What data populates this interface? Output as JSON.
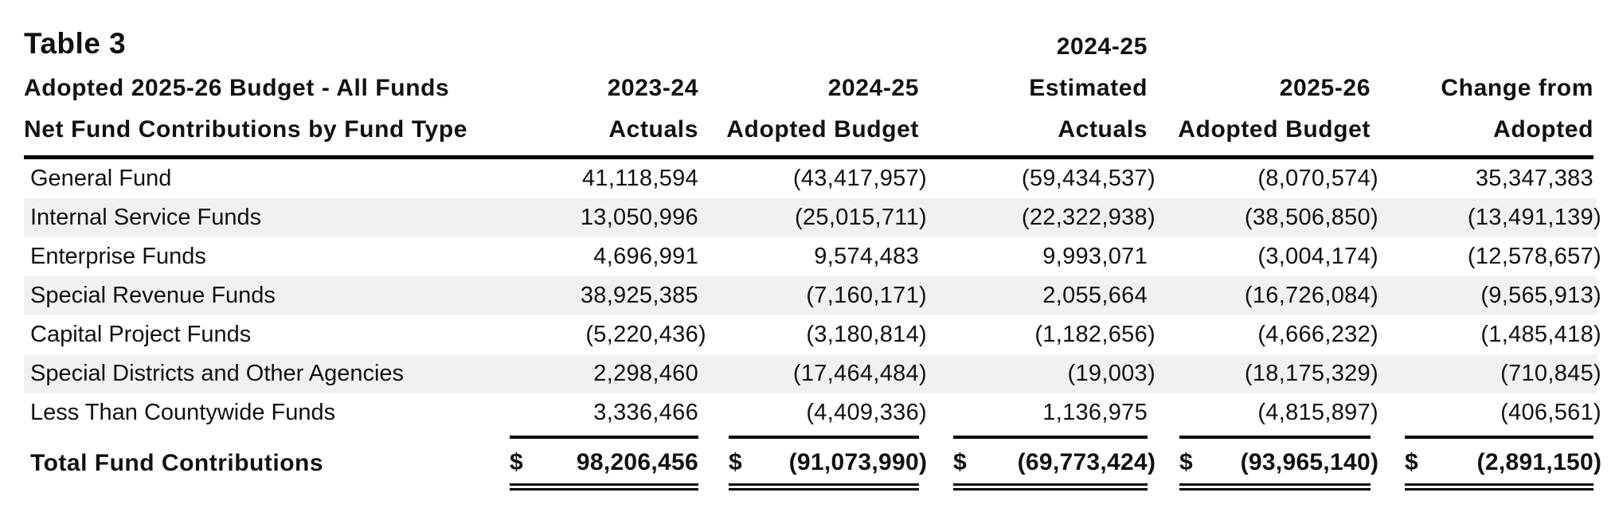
{
  "table": {
    "title": "Table 3",
    "subtitle_line1": "Adopted 2025-26 Budget - All Funds",
    "subtitle_line2": "Net Fund Contributions by Fund Type",
    "columns": [
      {
        "line1": "",
        "line2": "2023-24",
        "line3": "Actuals"
      },
      {
        "line1": "",
        "line2": "2024-25",
        "line3": "Adopted Budget"
      },
      {
        "line1": "2024-25",
        "line2": "Estimated",
        "line3": "Actuals"
      },
      {
        "line1": "",
        "line2": "2025-26",
        "line3": "Adopted Budget"
      },
      {
        "line1": "",
        "line2": "Change from",
        "line3": "Adopted"
      }
    ],
    "rows": [
      {
        "label": "General Fund",
        "values": [
          "41,118,594",
          "(43,417,957)",
          "(59,434,537)",
          "(8,070,574)",
          "35,347,383"
        ]
      },
      {
        "label": "Internal Service Funds",
        "values": [
          "13,050,996",
          "(25,015,711)",
          "(22,322,938)",
          "(38,506,850)",
          "(13,491,139)"
        ]
      },
      {
        "label": "Enterprise Funds",
        "values": [
          "4,696,991",
          "9,574,483",
          "9,993,071",
          "(3,004,174)",
          "(12,578,657)"
        ]
      },
      {
        "label": "Special Revenue Funds",
        "values": [
          "38,925,385",
          "(7,160,171)",
          "2,055,664",
          "(16,726,084)",
          "(9,565,913)"
        ]
      },
      {
        "label": "Capital Project Funds",
        "values": [
          "(5,220,436)",
          "(3,180,814)",
          "(1,182,656)",
          "(4,666,232)",
          "(1,485,418)"
        ]
      },
      {
        "label": "Special Districts and Other Agencies",
        "values": [
          "2,298,460",
          "(17,464,484)",
          "(19,003)",
          "(18,175,329)",
          "(710,845)"
        ]
      },
      {
        "label": "Less Than Countywide Funds",
        "values": [
          "3,336,466",
          "(4,409,336)",
          "1,136,975",
          "(4,815,897)",
          "(406,561)"
        ]
      }
    ],
    "total": {
      "label": "Total Fund Contributions",
      "currency_symbol": "$",
      "values": [
        "98,206,456",
        "(91,073,990)",
        "(69,773,424)",
        "(93,965,140)",
        "(2,891,150)"
      ]
    },
    "colors": {
      "text": "#111111",
      "stripe": "#f1f1f2",
      "rule": "#000000",
      "background": "#ffffff"
    }
  }
}
